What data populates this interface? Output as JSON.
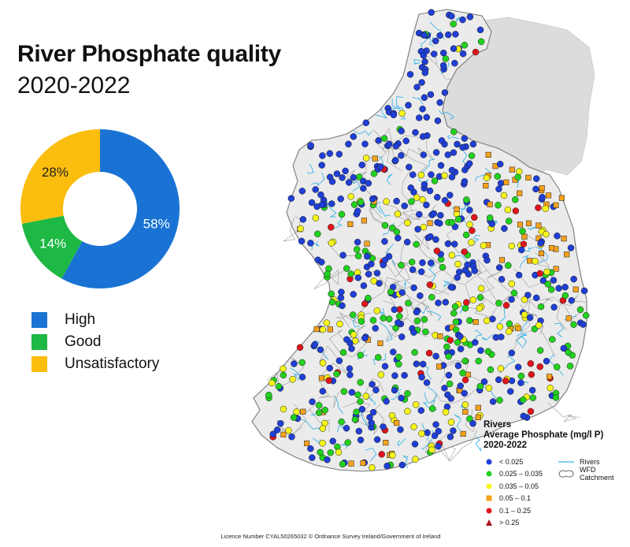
{
  "title": "River Phosphate quality",
  "subtitle": "2020-2022",
  "chart_data": {
    "type": "pie",
    "categories": [
      "High",
      "Good",
      "Unsatisfactory"
    ],
    "values": [
      58,
      14,
      28
    ],
    "labels": [
      "58%",
      "14%",
      "28%"
    ],
    "colors": [
      "#1a73d4",
      "#1eb845",
      "#fbbd0e"
    ],
    "legend_position": "bottom-left"
  },
  "legend": [
    {
      "label": "High",
      "color": "#1a73d4"
    },
    {
      "label": "Good",
      "color": "#1eb845"
    },
    {
      "label": "Unsatisfactory",
      "color": "#fbbd0e"
    }
  ],
  "map": {
    "legend_title_1": "Rivers",
    "legend_title_2": "Average Phosphate (mg/l P)",
    "legend_title_3": "2020-2022",
    "classes": [
      {
        "label": "< 0.025",
        "color": "#1f3fd6",
        "shape": "circle"
      },
      {
        "label": "0.025 – 0.035",
        "color": "#22d11e",
        "shape": "circle"
      },
      {
        "label": "0.035 – 0.05",
        "color": "#f5f51a",
        "shape": "circle"
      },
      {
        "label": "0.05 – 0.1",
        "color": "#f5a21c",
        "shape": "square"
      },
      {
        "label": "0.1 – 0.25",
        "color": "#e0161c",
        "shape": "circle"
      },
      {
        "label": "> 0.25",
        "color": "#a3141c",
        "shape": "triangle"
      }
    ],
    "rivers_label": "Rivers",
    "catchment_label": "WFD Catchment",
    "river_color": "#3cb4e6",
    "land_color": "#ebebeb",
    "ni_color": "#dcdcdc"
  },
  "footer": "Licence Number CYAL50265032 © Ordnance Survey Ireland/Government of Ireland"
}
